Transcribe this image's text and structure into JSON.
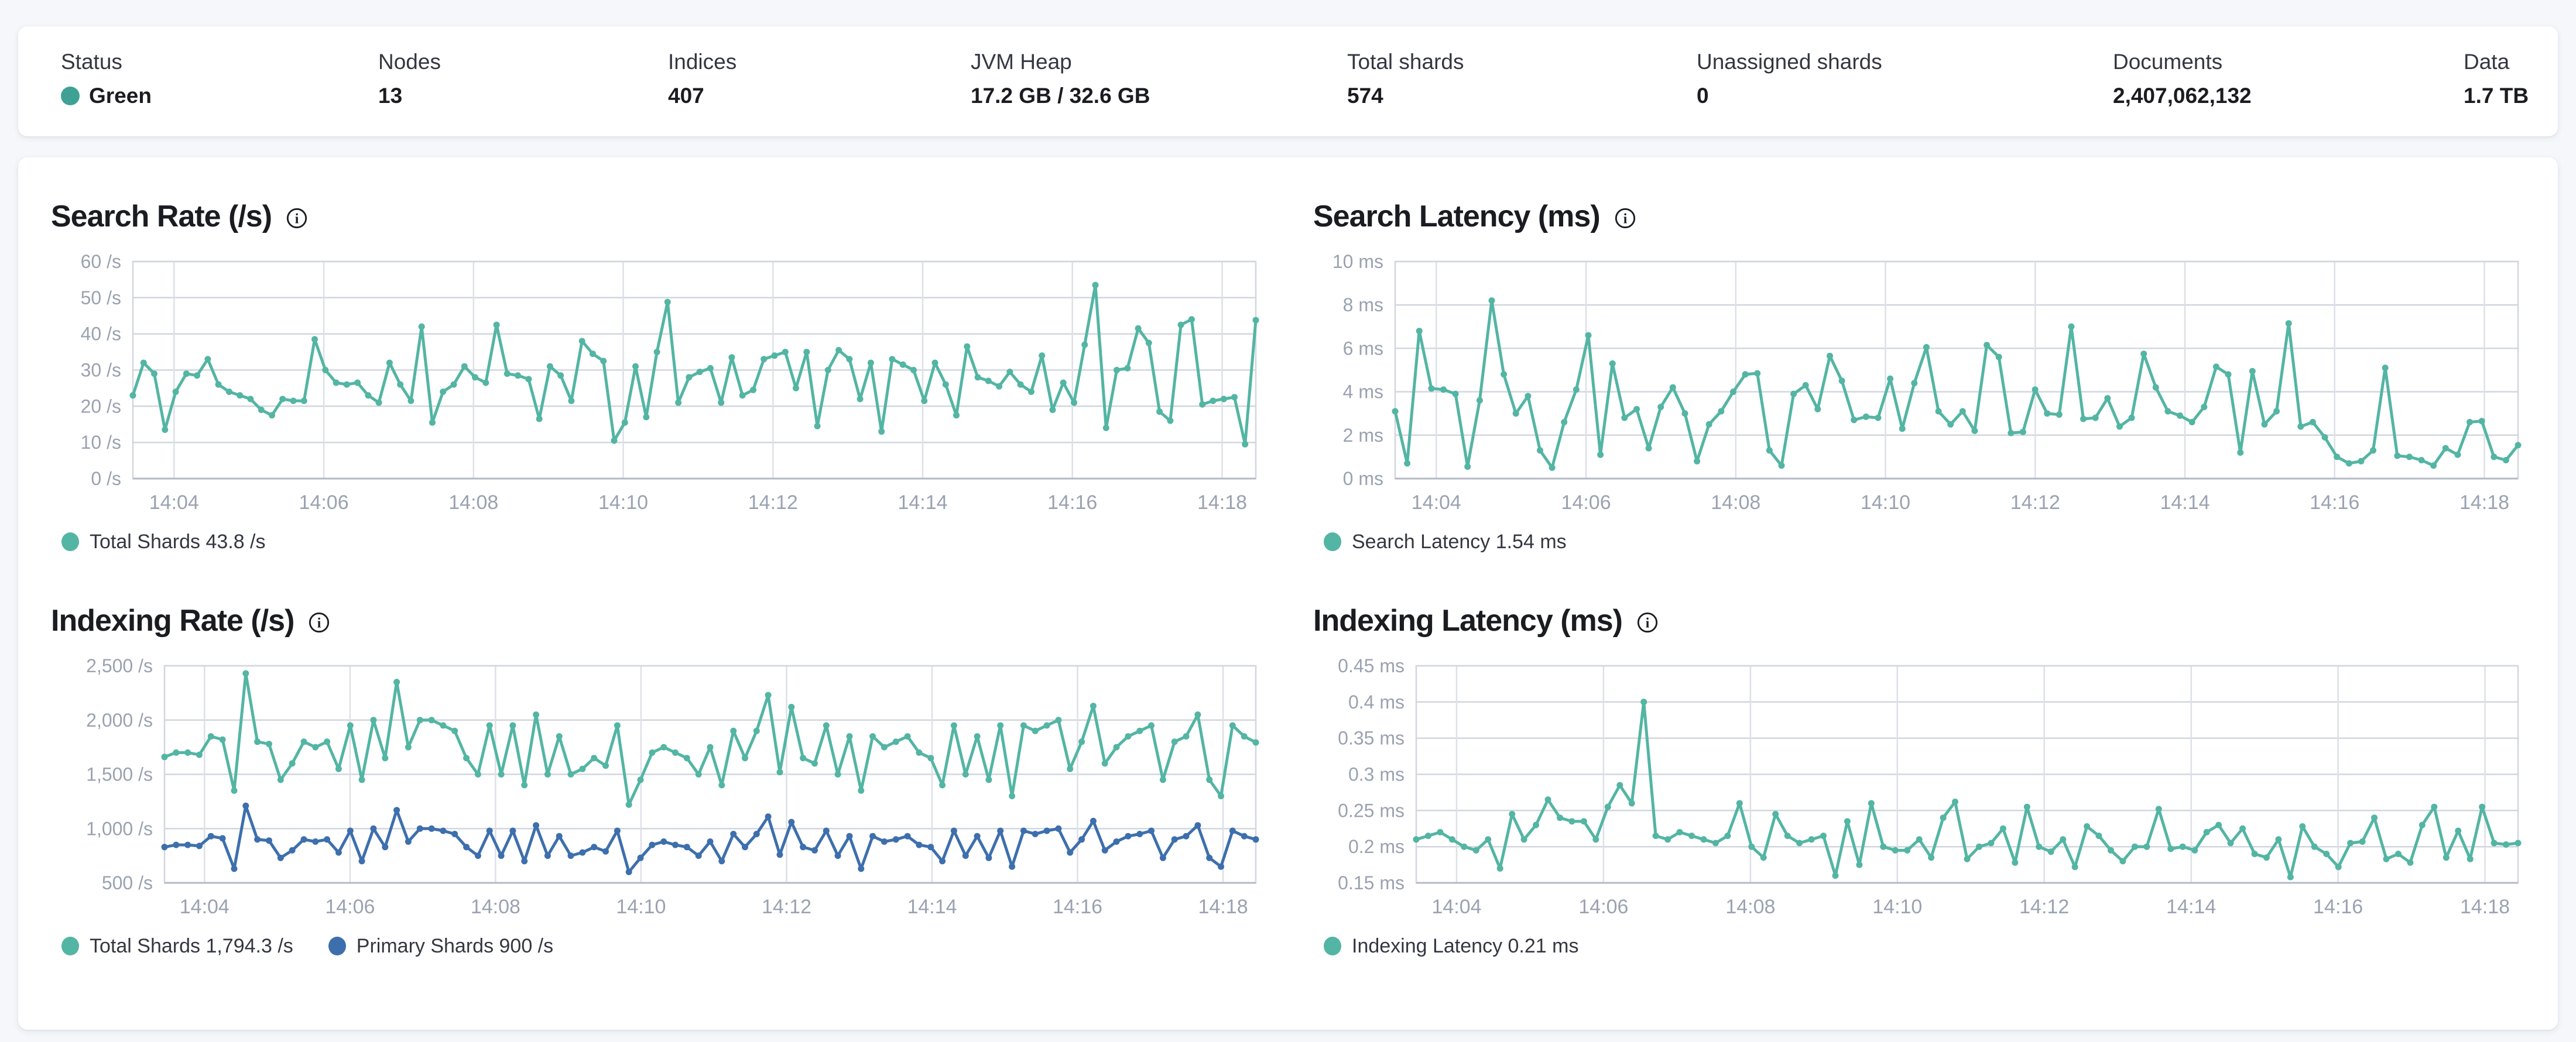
{
  "summary_bar": {
    "status_dot_color": "#3fa195",
    "items": [
      {
        "label": "Status",
        "value": "Green"
      },
      {
        "label": "Nodes",
        "value": "13"
      },
      {
        "label": "Indices",
        "value": "407"
      },
      {
        "label": "JVM Heap",
        "value": "17.2 GB / 32.6 GB"
      },
      {
        "label": "Total shards",
        "value": "574"
      },
      {
        "label": "Unassigned shards",
        "value": "0"
      },
      {
        "label": "Documents",
        "value": "2,407,062,132"
      },
      {
        "label": "Data",
        "value": "1.7 TB"
      }
    ]
  },
  "chart_data": [
    {
      "type": "line",
      "title": "Search Rate (/s)",
      "xlabel": "",
      "ylabel": "/s",
      "grid": true,
      "legend_position": "bottom",
      "xlim": [
        3.45,
        18.45
      ],
      "ylim": [
        0,
        60
      ],
      "xticks": [
        {
          "v": 4,
          "label": "14:04"
        },
        {
          "v": 6,
          "label": "14:06"
        },
        {
          "v": 8,
          "label": "14:08"
        },
        {
          "v": 10,
          "label": "14:10"
        },
        {
          "v": 12,
          "label": "14:12"
        },
        {
          "v": 14,
          "label": "14:14"
        },
        {
          "v": 16,
          "label": "14:16"
        },
        {
          "v": 18,
          "label": "14:18"
        }
      ],
      "yticks": [
        {
          "v": 0,
          "label": "0 /s"
        },
        {
          "v": 10,
          "label": "10 /s"
        },
        {
          "v": 20,
          "label": "20 /s"
        },
        {
          "v": 30,
          "label": "30 /s"
        },
        {
          "v": 40,
          "label": "40 /s"
        },
        {
          "v": 50,
          "label": "50 /s"
        },
        {
          "v": 60,
          "label": "60 /s"
        }
      ],
      "series": [
        {
          "name": "Total Shards",
          "legend": "Total Shards 43.8 /s",
          "color": "#53b5a3",
          "values": [
            23,
            32,
            29,
            13.5,
            24,
            29,
            28.5,
            33,
            26,
            24,
            23,
            22,
            19,
            17.5,
            22,
            21.5,
            21.5,
            38.5,
            30,
            26.5,
            26,
            26.5,
            23,
            21,
            32,
            26,
            21.5,
            42,
            15.5,
            24,
            26,
            31,
            28,
            26.5,
            42.5,
            29,
            28.5,
            27.5,
            16.5,
            31,
            28.5,
            21.5,
            38,
            34.5,
            32.5,
            10.5,
            15.5,
            31,
            17,
            35,
            48.8,
            21,
            28,
            29.5,
            30.5,
            21,
            33.5,
            23,
            24.5,
            33,
            34,
            35,
            25,
            35,
            14.5,
            30,
            35.5,
            33,
            22,
            32,
            13,
            33,
            31.5,
            30,
            21.5,
            32,
            26,
            17.5,
            36.5,
            28,
            27,
            25.5,
            29.5,
            26,
            24,
            34,
            19,
            26.5,
            21,
            37,
            53.5,
            14,
            30,
            30.5,
            41.5,
            37.5,
            18.5,
            16,
            42.5,
            44,
            20.5,
            21.5,
            22,
            22.5,
            9.5,
            43.8
          ]
        }
      ]
    },
    {
      "type": "line",
      "title": "Search Latency (ms)",
      "xlabel": "",
      "ylabel": "ms",
      "grid": true,
      "legend_position": "bottom",
      "xlim": [
        3.45,
        18.45
      ],
      "ylim": [
        0,
        10
      ],
      "xticks": [
        {
          "v": 4,
          "label": "14:04"
        },
        {
          "v": 6,
          "label": "14:06"
        },
        {
          "v": 8,
          "label": "14:08"
        },
        {
          "v": 10,
          "label": "14:10"
        },
        {
          "v": 12,
          "label": "14:12"
        },
        {
          "v": 14,
          "label": "14:14"
        },
        {
          "v": 16,
          "label": "14:16"
        },
        {
          "v": 18,
          "label": "14:18"
        }
      ],
      "yticks": [
        {
          "v": 0,
          "label": "0 ms"
        },
        {
          "v": 2,
          "label": "2 ms"
        },
        {
          "v": 4,
          "label": "4 ms"
        },
        {
          "v": 6,
          "label": "6 ms"
        },
        {
          "v": 8,
          "label": "8 ms"
        },
        {
          "v": 10,
          "label": "10 ms"
        }
      ],
      "series": [
        {
          "name": "Search Latency",
          "legend": "Search Latency 1.54 ms",
          "color": "#53b5a3",
          "values": [
            3.1,
            0.7,
            6.8,
            4.15,
            4.1,
            3.9,
            0.55,
            3.6,
            8.2,
            4.8,
            3.0,
            3.8,
            1.3,
            0.5,
            2.6,
            4.1,
            6.6,
            1.1,
            5.3,
            2.8,
            3.2,
            1.4,
            3.3,
            4.2,
            3.0,
            0.8,
            2.5,
            3.1,
            4.0,
            4.8,
            4.85,
            1.3,
            0.6,
            3.9,
            4.3,
            3.2,
            5.65,
            4.5,
            2.7,
            2.85,
            2.8,
            4.6,
            2.3,
            4.4,
            6.05,
            3.1,
            2.5,
            3.1,
            2.2,
            6.15,
            5.6,
            2.1,
            2.15,
            4.1,
            3.0,
            2.95,
            7.0,
            2.75,
            2.8,
            3.7,
            2.4,
            2.8,
            5.75,
            4.2,
            3.1,
            2.9,
            2.6,
            3.3,
            5.15,
            4.8,
            1.2,
            4.95,
            2.5,
            3.1,
            7.15,
            2.4,
            2.6,
            1.9,
            1.0,
            0.7,
            0.8,
            1.3,
            5.1,
            1.05,
            1.0,
            0.85,
            0.6,
            1.4,
            1.1,
            2.6,
            2.65,
            1.0,
            0.85,
            1.54
          ]
        }
      ]
    },
    {
      "type": "line",
      "title": "Indexing Rate (/s)",
      "xlabel": "",
      "ylabel": "/s",
      "grid": true,
      "legend_position": "bottom",
      "xlim": [
        3.45,
        18.45
      ],
      "ylim": [
        500,
        2500
      ],
      "xticks": [
        {
          "v": 4,
          "label": "14:04"
        },
        {
          "v": 6,
          "label": "14:06"
        },
        {
          "v": 8,
          "label": "14:08"
        },
        {
          "v": 10,
          "label": "14:10"
        },
        {
          "v": 12,
          "label": "14:12"
        },
        {
          "v": 14,
          "label": "14:14"
        },
        {
          "v": 16,
          "label": "14:16"
        },
        {
          "v": 18,
          "label": "14:18"
        }
      ],
      "yticks": [
        {
          "v": 500,
          "label": "500 /s"
        },
        {
          "v": 1000,
          "label": "1,000 /s"
        },
        {
          "v": 1500,
          "label": "1,500 /s"
        },
        {
          "v": 2000,
          "label": "2,000 /s"
        },
        {
          "v": 2500,
          "label": "2,500 /s"
        }
      ],
      "series": [
        {
          "name": "Total Shards",
          "legend": "Total Shards 1,794.3 /s",
          "color": "#53b5a3",
          "values": [
            1660,
            1700,
            1700,
            1680,
            1850,
            1820,
            1350,
            2430,
            1800,
            1780,
            1450,
            1600,
            1800,
            1750,
            1800,
            1550,
            1950,
            1450,
            2000,
            1650,
            2350,
            1750,
            2000,
            2000,
            1950,
            1900,
            1650,
            1500,
            1950,
            1500,
            1950,
            1400,
            2050,
            1500,
            1850,
            1500,
            1550,
            1650,
            1580,
            1950,
            1220,
            1450,
            1700,
            1750,
            1700,
            1650,
            1500,
            1750,
            1400,
            1900,
            1650,
            1900,
            2230,
            1520,
            2120,
            1650,
            1600,
            1950,
            1500,
            1850,
            1350,
            1850,
            1750,
            1800,
            1850,
            1700,
            1650,
            1400,
            1950,
            1500,
            1850,
            1450,
            1950,
            1300,
            1950,
            1900,
            1950,
            2000,
            1550,
            1800,
            2130,
            1600,
            1750,
            1850,
            1900,
            1950,
            1450,
            1800,
            1850,
            2050,
            1450,
            1300,
            1950,
            1850,
            1794
          ]
        },
        {
          "name": "Primary Shards",
          "legend": "Primary Shards 900 /s",
          "color": "#3d6fad",
          "values": [
            830,
            850,
            850,
            840,
            930,
            910,
            630,
            1210,
            900,
            890,
            730,
            800,
            900,
            880,
            900,
            780,
            980,
            700,
            1000,
            830,
            1170,
            880,
            1000,
            1000,
            980,
            950,
            830,
            750,
            980,
            750,
            980,
            700,
            1030,
            750,
            930,
            750,
            780,
            830,
            790,
            980,
            600,
            730,
            850,
            880,
            850,
            830,
            750,
            880,
            700,
            950,
            830,
            950,
            1110,
            760,
            1060,
            830,
            800,
            980,
            750,
            930,
            630,
            930,
            880,
            900,
            930,
            850,
            830,
            700,
            980,
            750,
            930,
            730,
            980,
            650,
            980,
            950,
            980,
            1000,
            780,
            900,
            1070,
            800,
            880,
            930,
            950,
            980,
            730,
            900,
            930,
            1030,
            730,
            650,
            980,
            930,
            900
          ]
        }
      ]
    },
    {
      "type": "line",
      "title": "Indexing Latency (ms)",
      "xlabel": "",
      "ylabel": "ms",
      "grid": true,
      "legend_position": "bottom",
      "xlim": [
        3.45,
        18.45
      ],
      "ylim": [
        0.15,
        0.45
      ],
      "xticks": [
        {
          "v": 4,
          "label": "14:04"
        },
        {
          "v": 6,
          "label": "14:06"
        },
        {
          "v": 8,
          "label": "14:08"
        },
        {
          "v": 10,
          "label": "14:10"
        },
        {
          "v": 12,
          "label": "14:12"
        },
        {
          "v": 14,
          "label": "14:14"
        },
        {
          "v": 16,
          "label": "14:16"
        },
        {
          "v": 18,
          "label": "14:18"
        }
      ],
      "yticks": [
        {
          "v": 0.15,
          "label": "0.15 ms"
        },
        {
          "v": 0.2,
          "label": "0.2 ms"
        },
        {
          "v": 0.25,
          "label": "0.25 ms"
        },
        {
          "v": 0.3,
          "label": "0.3 ms"
        },
        {
          "v": 0.35,
          "label": "0.35 ms"
        },
        {
          "v": 0.4,
          "label": "0.4 ms"
        },
        {
          "v": 0.45,
          "label": "0.45 ms"
        }
      ],
      "series": [
        {
          "name": "Indexing Latency",
          "legend": "Indexing Latency 0.21 ms",
          "color": "#53b5a3",
          "values": [
            0.21,
            0.215,
            0.22,
            0.21,
            0.2,
            0.195,
            0.21,
            0.17,
            0.245,
            0.21,
            0.23,
            0.265,
            0.24,
            0.235,
            0.235,
            0.21,
            0.255,
            0.285,
            0.26,
            0.4,
            0.215,
            0.21,
            0.22,
            0.215,
            0.21,
            0.205,
            0.215,
            0.26,
            0.2,
            0.185,
            0.245,
            0.215,
            0.205,
            0.21,
            0.215,
            0.16,
            0.235,
            0.175,
            0.26,
            0.2,
            0.195,
            0.195,
            0.21,
            0.185,
            0.24,
            0.262,
            0.183,
            0.2,
            0.205,
            0.225,
            0.178,
            0.255,
            0.2,
            0.193,
            0.21,
            0.172,
            0.228,
            0.215,
            0.195,
            0.18,
            0.2,
            0.2,
            0.252,
            0.197,
            0.2,
            0.195,
            0.22,
            0.23,
            0.205,
            0.225,
            0.19,
            0.185,
            0.21,
            0.158,
            0.228,
            0.2,
            0.19,
            0.172,
            0.205,
            0.207,
            0.24,
            0.183,
            0.19,
            0.178,
            0.23,
            0.255,
            0.185,
            0.222,
            0.183,
            0.255,
            0.205,
            0.203,
            0.205
          ]
        }
      ]
    }
  ]
}
